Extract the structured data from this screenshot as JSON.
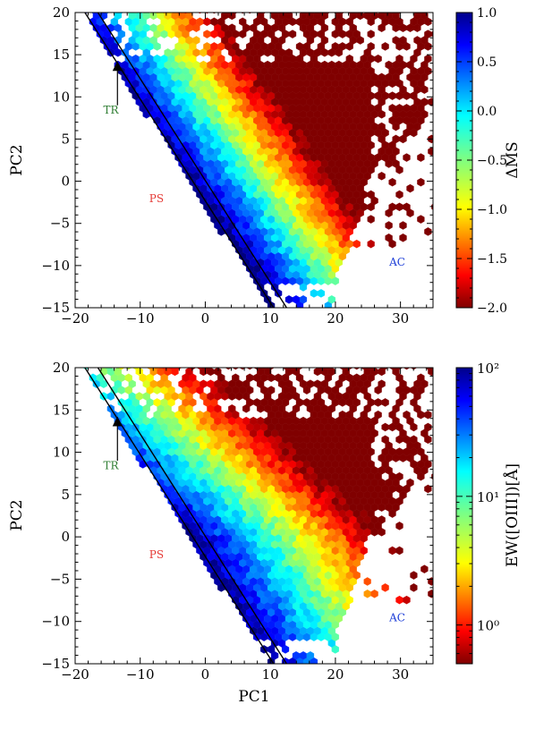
{
  "chart_data": [
    {
      "type": "heatmap",
      "panel": "top",
      "xlabel": "",
      "ylabel": "PC2",
      "xlim": [
        -20,
        35
      ],
      "ylim": [
        -15,
        20
      ],
      "x_ticks": [
        "−20",
        "−10",
        "0",
        "10",
        "20",
        "30"
      ],
      "y_ticks": [
        "−15",
        "−10",
        "−5",
        "0",
        "5",
        "10",
        "15",
        "20"
      ],
      "colorbar": {
        "label": "ΔMS",
        "scale": "linear",
        "range": [
          -2.0,
          1.0
        ],
        "ticks": [
          "−2.0",
          "−1.5",
          "−1.0",
          "−0.5",
          "0.0",
          "0.5",
          "1.0"
        ]
      },
      "annotations": [
        {
          "text": "TR",
          "x": -14.5,
          "y": 8.0,
          "color": "#2e7d32"
        },
        {
          "text": "PS",
          "x": -7.5,
          "y": -2.5,
          "color": "#e53935"
        },
        {
          "text": "AC",
          "x": 29.5,
          "y": -10.0,
          "color": "#1e3fd8"
        }
      ],
      "marker": {
        "x": -13.5,
        "y": 13.5,
        "shape": "triangle-up",
        "color": "#000000"
      },
      "boundary_lines": [
        {
          "x1": -18.5,
          "y1": 20,
          "x2": 10.5,
          "y2": -15
        },
        {
          "x1": -16.5,
          "y1": 20,
          "x2": 12.5,
          "y2": -15
        }
      ],
      "hexbin_field": "color encodes mean ΔMS per hexagonal bin; low values (red) along the left boundary, high values (blue) to the right"
    },
    {
      "type": "heatmap",
      "panel": "bottom",
      "xlabel": "PC1",
      "ylabel": "PC2",
      "xlim": [
        -20,
        35
      ],
      "ylim": [
        -15,
        20
      ],
      "x_ticks": [
        "−20",
        "−10",
        "0",
        "10",
        "20",
        "30"
      ],
      "y_ticks": [
        "−15",
        "−10",
        "−5",
        "0",
        "5",
        "10",
        "15",
        "20"
      ],
      "colorbar": {
        "label": "EW([OIII])[Å]",
        "scale": "log",
        "range": [
          0.5,
          100
        ],
        "ticks": [
          "10⁰",
          "10¹",
          "10²"
        ]
      },
      "annotations": [
        {
          "text": "TR",
          "x": -14.5,
          "y": 8.0,
          "color": "#2e7d32"
        },
        {
          "text": "PS",
          "x": -7.5,
          "y": -2.5,
          "color": "#e53935"
        },
        {
          "text": "AC",
          "x": 29.5,
          "y": -10.0,
          "color": "#1e3fd8"
        }
      ],
      "marker": {
        "x": -13.5,
        "y": 13.5,
        "shape": "triangle-up",
        "color": "#000000"
      },
      "boundary_lines": [
        {
          "x1": -18.5,
          "y1": 20,
          "x2": 10.5,
          "y2": -15
        },
        {
          "x1": -16.5,
          "y1": 20,
          "x2": 12.5,
          "y2": -15
        }
      ],
      "hexbin_field": "color encodes mean EW([OIII]) per hexagonal bin; low values (red) near the left boundary, high values (blue) at large PC1 and PC2"
    }
  ]
}
